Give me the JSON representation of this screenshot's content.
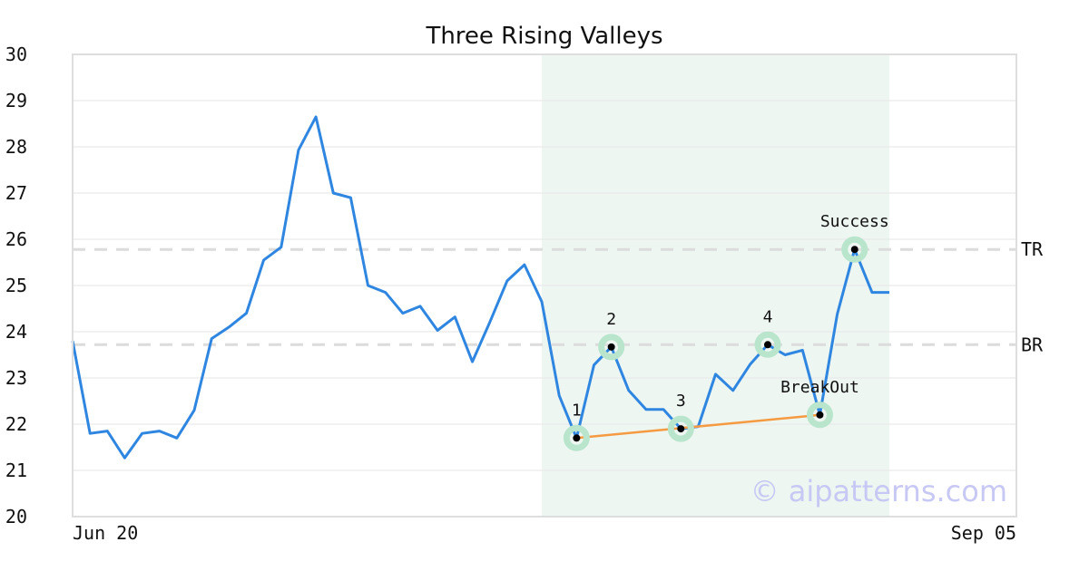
{
  "chart_data": {
    "type": "line",
    "title": "Three Rising Valleys",
    "xlabel": "",
    "ylabel": "",
    "ylim": [
      20,
      30
    ],
    "y_ticks": [
      "20",
      "21",
      "22",
      "23",
      "24",
      "25",
      "26",
      "27",
      "28",
      "29",
      "30"
    ],
    "x_tick_labels": [
      "Jun 20",
      "Sep 05"
    ],
    "grid": "horizontal",
    "series": [
      {
        "color": "#2f86e0",
        "values": [
          23.8,
          21.8,
          21.85,
          21.27,
          21.8,
          21.85,
          21.7,
          22.3,
          23.85,
          24.1,
          24.4,
          25.55,
          25.83,
          27.93,
          28.65,
          27.0,
          26.9,
          25.0,
          24.85,
          24.4,
          24.55,
          24.03,
          24.32,
          23.35,
          24.2,
          25.1,
          25.45,
          24.65,
          22.62,
          21.7,
          23.28,
          23.67,
          22.73,
          22.32,
          22.32,
          21.9,
          21.95,
          23.08,
          22.73,
          23.3,
          23.72,
          23.5,
          23.6,
          22.2,
          24.38,
          25.78,
          24.85,
          24.85
        ]
      }
    ],
    "highlight_region": {
      "from_index": 27,
      "to_index": 47,
      "color": "#eef6f2"
    },
    "support_line": {
      "from_index": 29,
      "to_index": 43,
      "y_from": 21.7,
      "y_to": 22.2,
      "color": "#f59a40"
    },
    "levels": [
      {
        "label": "TR",
        "y": 25.78
      },
      {
        "label": "BR",
        "y": 23.72
      }
    ],
    "markers": [
      {
        "label": "1",
        "index": 29,
        "y": 21.7
      },
      {
        "label": "2",
        "index": 31,
        "y": 23.67
      },
      {
        "label": "3",
        "index": 35,
        "y": 21.9
      },
      {
        "label": "4",
        "index": 40,
        "y": 23.72
      },
      {
        "label": "BreakOut",
        "index": 43,
        "y": 22.2
      },
      {
        "label": "Success",
        "index": 45,
        "y": 25.78
      }
    ],
    "watermark": "© aipatterns.com"
  }
}
